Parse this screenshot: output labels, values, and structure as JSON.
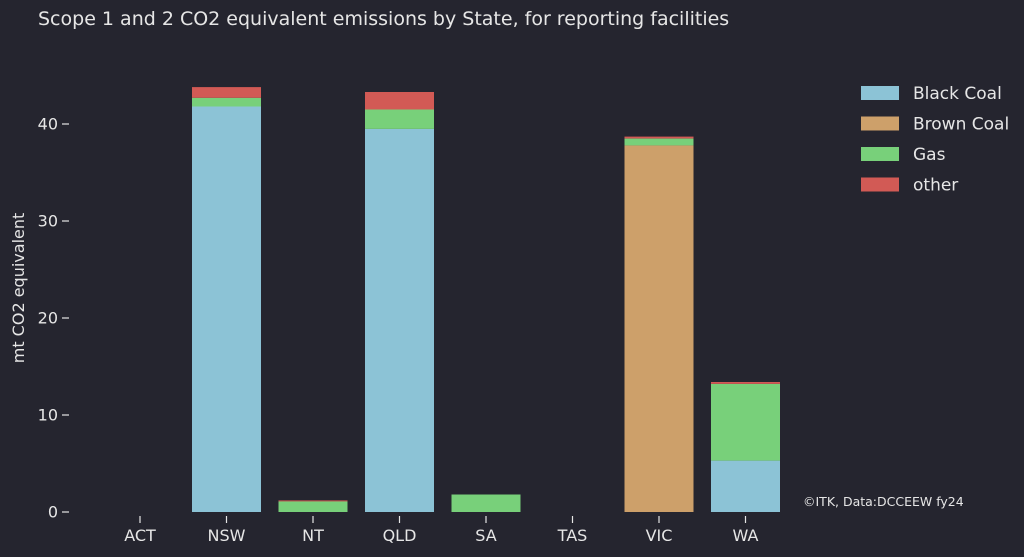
{
  "chart_data": {
    "type": "bar",
    "stacked": true,
    "title": "Scope 1 and 2 CO2 equivalent emissions by State, for reporting facilities",
    "xlabel": "",
    "ylabel": "mt CO2 equivalent",
    "ylim": [
      0,
      45
    ],
    "yticks": [
      0,
      10,
      20,
      30,
      40
    ],
    "grid": false,
    "legend_position": "top-right",
    "categories": [
      "ACT",
      "NSW",
      "NT",
      "QLD",
      "SA",
      "TAS",
      "VIC",
      "WA"
    ],
    "series": [
      {
        "name": "Black Coal",
        "color": "#8cc3d6",
        "values": [
          0,
          41.8,
          0,
          39.5,
          0,
          0,
          0,
          5.3
        ]
      },
      {
        "name": "Brown Coal",
        "color": "#cda06a",
        "values": [
          0,
          0,
          0,
          0,
          0,
          0,
          37.8,
          0
        ]
      },
      {
        "name": "Gas",
        "color": "#78d07a",
        "values": [
          0,
          0.9,
          1.1,
          2.0,
          1.8,
          0,
          0.7,
          7.9
        ]
      },
      {
        "name": "other",
        "color": "#d25a55",
        "values": [
          0,
          1.1,
          0.1,
          1.8,
          0,
          0,
          0.2,
          0.2
        ]
      }
    ],
    "annotation": "©ITK, Data:DCCEEW fy24"
  }
}
